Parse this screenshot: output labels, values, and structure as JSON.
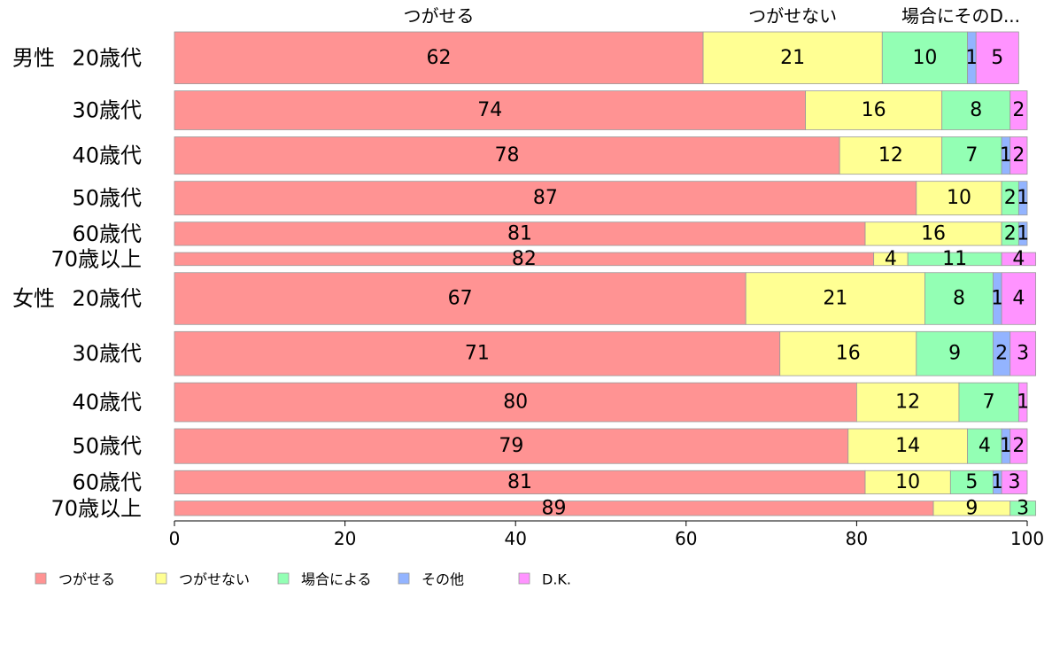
{
  "chart_data": {
    "type": "bar",
    "orientation": "horizontal",
    "stacked": true,
    "xlim": [
      0,
      100
    ],
    "x_ticks": [
      "0",
      "20",
      "40",
      "60",
      "80",
      "100"
    ],
    "top_labels": [
      "つがせる",
      "つがせない",
      "場合にそのD..."
    ],
    "groups": [
      {
        "label": "男性",
        "first_row": 0
      },
      {
        "label": "女性",
        "first_row": 6
      }
    ],
    "rows": [
      {
        "label": "20歳代",
        "weight": 1.0,
        "values": [
          62,
          21,
          10,
          1,
          5
        ]
      },
      {
        "label": "30歳代",
        "weight": 0.75,
        "values": [
          74,
          16,
          8,
          0,
          2
        ]
      },
      {
        "label": "40歳代",
        "weight": 0.72,
        "values": [
          78,
          12,
          7,
          1,
          2
        ]
      },
      {
        "label": "50歳代",
        "weight": 0.65,
        "values": [
          87,
          10,
          2,
          1,
          0
        ]
      },
      {
        "label": "60歳代",
        "weight": 0.45,
        "values": [
          81,
          16,
          2,
          1,
          0
        ]
      },
      {
        "label": "70歳以上",
        "weight": 0.25,
        "values": [
          82,
          4,
          11,
          0,
          4
        ]
      },
      {
        "label": "20歳代",
        "weight": 1.0,
        "values": [
          67,
          21,
          8,
          1,
          4
        ]
      },
      {
        "label": "30歳代",
        "weight": 0.85,
        "values": [
          71,
          16,
          9,
          2,
          3
        ]
      },
      {
        "label": "40歳代",
        "weight": 0.75,
        "values": [
          80,
          12,
          7,
          0,
          1
        ]
      },
      {
        "label": "50歳代",
        "weight": 0.67,
        "values": [
          79,
          14,
          4,
          1,
          2
        ]
      },
      {
        "label": "60歳代",
        "weight": 0.45,
        "values": [
          81,
          10,
          5,
          1,
          3
        ]
      },
      {
        "label": "70歳以上",
        "weight": 0.28,
        "values": [
          89,
          9,
          3,
          0,
          0
        ]
      }
    ],
    "series": [
      {
        "name": "つがせる",
        "color": "#ff9393"
      },
      {
        "name": "つがせない",
        "color": "#ffff93"
      },
      {
        "name": "場合による",
        "color": "#93ffb4"
      },
      {
        "name": "その他",
        "color": "#93b4ff"
      },
      {
        "name": "D.K.",
        "color": "#ff93ff"
      }
    ]
  }
}
